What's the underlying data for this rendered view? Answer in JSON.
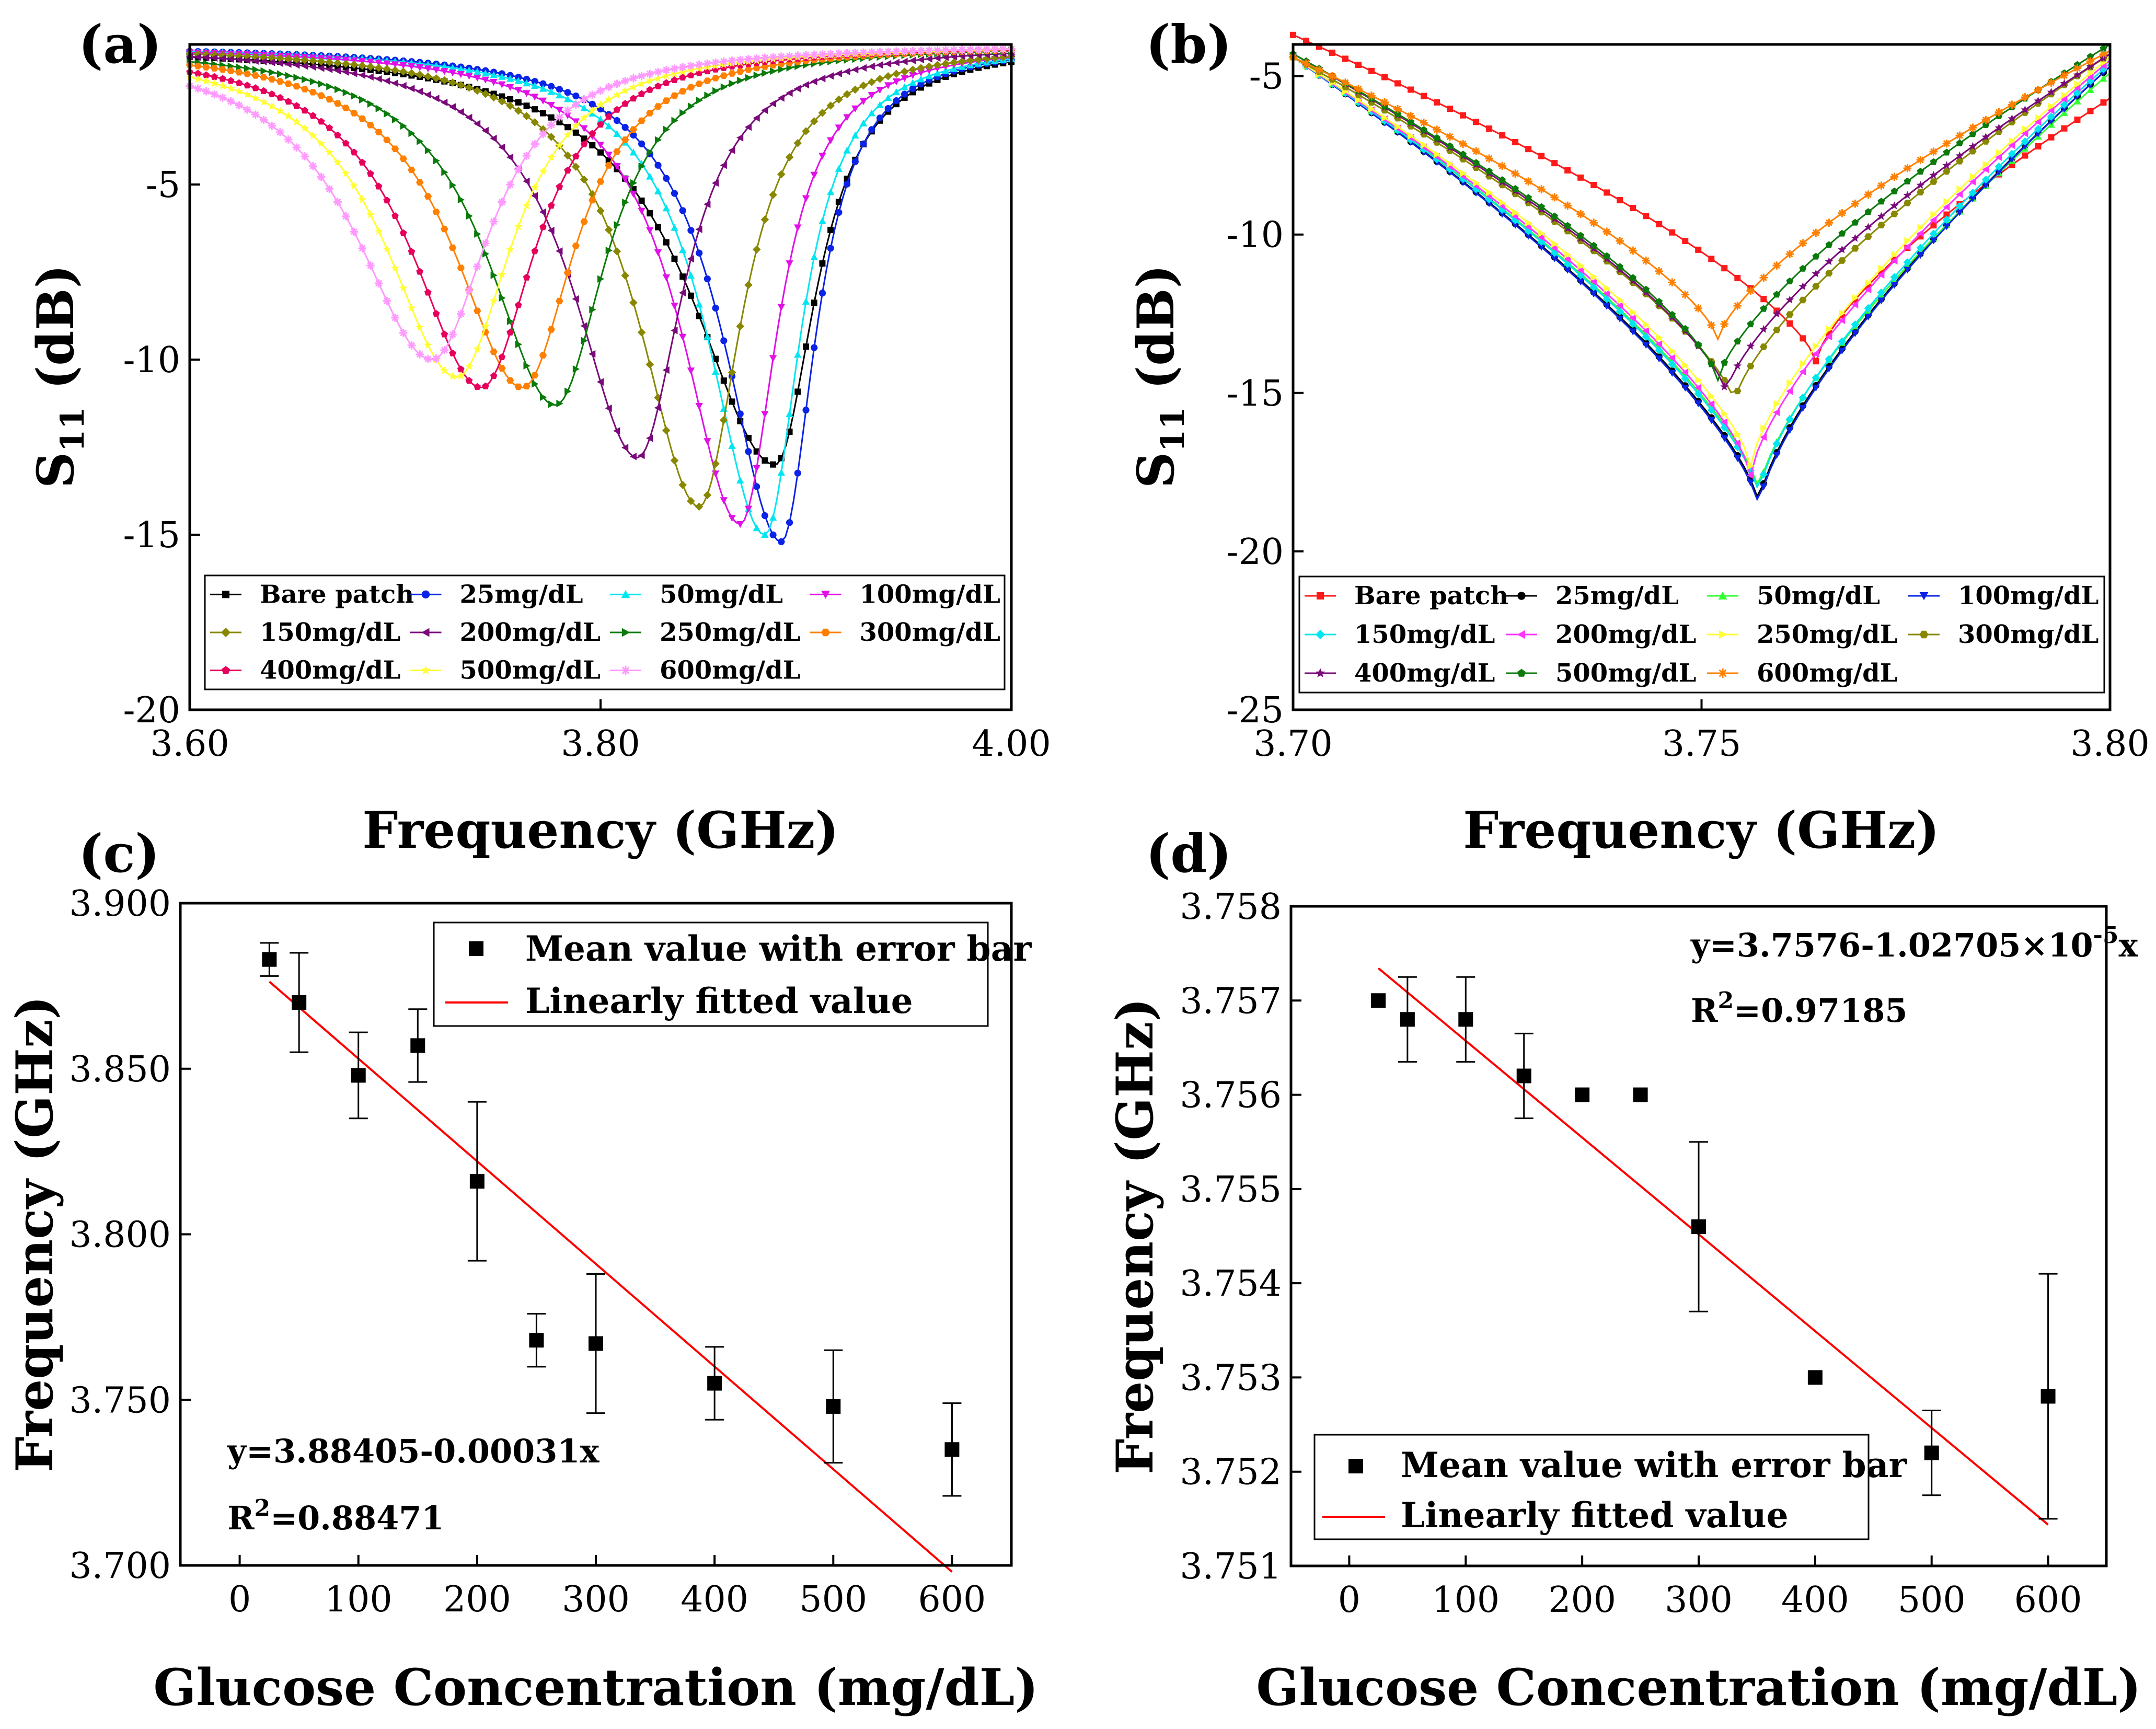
{
  "figure_labels": {
    "a": "(a)",
    "b": "(b)",
    "c": "(c)",
    "d": "(d)"
  },
  "chart_data": [
    {
      "panel": "(a)",
      "type": "line",
      "xlabel": "Frequency (GHz)",
      "ylabel": "S11 (dB)",
      "ylabel_main": "S",
      "ylabel_sub": "11",
      "ylabel_tail": " (dB)",
      "xlim": [
        3.6,
        4.0
      ],
      "ylim": [
        -20,
        -1
      ],
      "xticks": [
        "3.60",
        "3.80",
        "4.00"
      ],
      "xtick_values": [
        3.6,
        3.8,
        4.0
      ],
      "yticks": [
        "-5",
        "-10",
        "-15",
        "-20"
      ],
      "ytick_values": [
        -5,
        -10,
        -15,
        -20
      ],
      "baseline": -1.0,
      "legend_columns": 4,
      "series": [
        {
          "name": "Bare patch",
          "color": "#000000",
          "marker": "square",
          "f0": 3.885,
          "min": -13.0,
          "wl": 0.05,
          "wr": 0.024
        },
        {
          "name": "25mg/dL",
          "color": "#0a23e6",
          "marker": "circle",
          "f0": 3.888,
          "min": -15.2,
          "wl": 0.034,
          "wr": 0.02
        },
        {
          "name": "50mg/dL",
          "color": "#00e6f0",
          "marker": "triangle-up",
          "f0": 3.88,
          "min": -15.0,
          "wl": 0.034,
          "wr": 0.021
        },
        {
          "name": "100mg/dL",
          "color": "#e010e6",
          "marker": "triangle-down",
          "f0": 3.868,
          "min": -14.7,
          "wl": 0.035,
          "wr": 0.022
        },
        {
          "name": "150mg/dL",
          "color": "#888800",
          "marker": "diamond",
          "f0": 3.848,
          "min": -14.2,
          "wl": 0.036,
          "wr": 0.025
        },
        {
          "name": "200mg/dL",
          "color": "#7a0a7a",
          "marker": "triangle-left",
          "f0": 3.818,
          "min": -12.8,
          "wl": 0.038,
          "wr": 0.027
        },
        {
          "name": "250mg/dL",
          "color": "#0a7a0a",
          "marker": "triangle-right",
          "f0": 3.778,
          "min": -11.3,
          "wl": 0.04,
          "wr": 0.03
        },
        {
          "name": "300mg/dL",
          "color": "#ff8000",
          "marker": "hexagon",
          "f0": 3.762,
          "min": -10.8,
          "wl": 0.041,
          "wr": 0.031
        },
        {
          "name": "400mg/dL",
          "color": "#e6005c",
          "marker": "pentagon",
          "f0": 3.742,
          "min": -10.8,
          "wl": 0.042,
          "wr": 0.032
        },
        {
          "name": "500mg/dL",
          "color": "#ffff33",
          "marker": "star",
          "f0": 3.73,
          "min": -10.5,
          "wl": 0.043,
          "wr": 0.033
        },
        {
          "name": "600mg/dL",
          "color": "#ff99ff",
          "marker": "asterisk",
          "f0": 3.718,
          "min": -10.0,
          "wl": 0.046,
          "wr": 0.034
        }
      ]
    },
    {
      "panel": "(b)",
      "type": "line",
      "xlabel": "Frequency (GHz)",
      "ylabel": "S11 (dB)",
      "ylabel_main": "S",
      "ylabel_sub": "11",
      "ylabel_tail": " (dB)",
      "xlim": [
        3.7,
        3.8
      ],
      "ylim": [
        -25,
        -4
      ],
      "xticks": [
        "3.70",
        "3.75",
        "3.80"
      ],
      "xtick_values": [
        3.7,
        3.75,
        3.8
      ],
      "yticks": [
        "-5",
        "-10",
        "-15",
        "-20",
        "-25"
      ],
      "ytick_values": [
        -5,
        -10,
        -15,
        -20,
        -25
      ],
      "legend_columns": 4,
      "series": [
        {
          "name": "Bare patch",
          "color": "#ff1a1a",
          "marker": "square",
          "y_left": -3.7,
          "f0": 3.764,
          "min": -14.0,
          "y_right": -5.7
        },
        {
          "name": "25mg/dL",
          "color": "#000000",
          "marker": "circle",
          "y_left": -4.4,
          "f0": 3.757,
          "min": -18.5,
          "y_right": -4.7
        },
        {
          "name": "50mg/dL",
          "color": "#33ff33",
          "marker": "triangle-up",
          "y_left": -4.4,
          "f0": 3.757,
          "min": -18.1,
          "y_right": -4.9
        },
        {
          "name": "100mg/dL",
          "color": "#0a23e6",
          "marker": "triangle-down",
          "y_left": -4.4,
          "f0": 3.757,
          "min": -18.6,
          "y_right": -4.7
        },
        {
          "name": "150mg/dL",
          "color": "#00e6f0",
          "marker": "diamond",
          "y_left": -4.4,
          "f0": 3.757,
          "min": -18.2,
          "y_right": -4.6
        },
        {
          "name": "200mg/dL",
          "color": "#ff33ff",
          "marker": "triangle-left",
          "y_left": -4.4,
          "f0": 3.756,
          "min": -17.6,
          "y_right": -4.5
        },
        {
          "name": "250mg/dL",
          "color": "#ffff33",
          "marker": "triangle-right",
          "y_left": -4.4,
          "f0": 3.756,
          "min": -17.3,
          "y_right": -4.4
        },
        {
          "name": "300mg/dL",
          "color": "#888800",
          "marker": "hexagon",
          "y_left": -4.4,
          "f0": 3.754,
          "min": -15.3,
          "y_right": -4.3
        },
        {
          "name": "400mg/dL",
          "color": "#7a0a7a",
          "marker": "star",
          "y_left": -4.3,
          "f0": 3.753,
          "min": -15.0,
          "y_right": -4.3
        },
        {
          "name": "500mg/dL",
          "color": "#0a7a0a",
          "marker": "pentagon",
          "y_left": -4.3,
          "f0": 3.752,
          "min": -14.6,
          "y_right": -4.0
        },
        {
          "name": "600mg/dL",
          "color": "#ff8000",
          "marker": "asterisk",
          "y_left": -4.4,
          "f0": 3.752,
          "min": -13.3,
          "y_right": -4.2
        }
      ]
    },
    {
      "panel": "(c)",
      "type": "scatter",
      "xlabel": "Glucose Concentration (mg/dL)",
      "ylabel": "Frequency (GHz)",
      "xlim": [
        -50,
        650
      ],
      "ylim": [
        3.7,
        3.9
      ],
      "xticks": [
        "0",
        "100",
        "200",
        "300",
        "400",
        "500",
        "600"
      ],
      "xtick_values": [
        0,
        100,
        200,
        300,
        400,
        500,
        600
      ],
      "yticks": [
        "3.900",
        "3.850",
        "3.800",
        "3.750",
        "3.700"
      ],
      "ytick_values": [
        3.9,
        3.85,
        3.8,
        3.75,
        3.7
      ],
      "points": [
        {
          "x": 25,
          "y": 3.883,
          "err": 0.005
        },
        {
          "x": 50,
          "y": 3.87,
          "err": 0.015
        },
        {
          "x": 100,
          "y": 3.848,
          "err": 0.013
        },
        {
          "x": 150,
          "y": 3.857,
          "err": 0.011
        },
        {
          "x": 200,
          "y": 3.816,
          "err": 0.024
        },
        {
          "x": 250,
          "y": 3.768,
          "err": 0.008
        },
        {
          "x": 300,
          "y": 3.767,
          "err": 0.021
        },
        {
          "x": 400,
          "y": 3.755,
          "err": 0.011
        },
        {
          "x": 500,
          "y": 3.748,
          "err": 0.017
        },
        {
          "x": 600,
          "y": 3.735,
          "err": 0.014
        }
      ],
      "fit": {
        "intercept": 3.88405,
        "slope": -0.00031,
        "x_range": [
          25,
          600
        ]
      },
      "legend": [
        "Mean value with error bar",
        "Linearly fitted value"
      ],
      "equation": "y=3.88405-0.00031x",
      "r2_prefix": "R",
      "r2_sup": "2",
      "r2_value": "=0.88471"
    },
    {
      "panel": "(d)",
      "type": "scatter",
      "xlabel": "Glucose Concentration (mg/dL)",
      "ylabel": "Frequency (GHz)",
      "xlim": [
        -50,
        650
      ],
      "ylim": [
        3.751,
        3.758
      ],
      "xticks": [
        "0",
        "100",
        "200",
        "300",
        "400",
        "500",
        "600"
      ],
      "xtick_values": [
        0,
        100,
        200,
        300,
        400,
        500,
        600
      ],
      "yticks": [
        "3.758",
        "3.757",
        "3.756",
        "3.755",
        "3.754",
        "3.753",
        "3.752",
        "3.751"
      ],
      "ytick_values": [
        3.758,
        3.757,
        3.756,
        3.755,
        3.754,
        3.753,
        3.752,
        3.751
      ],
      "points": [
        {
          "x": 25,
          "y": 3.757,
          "err": 0
        },
        {
          "x": 50,
          "y": 3.7568,
          "err": 0.00045
        },
        {
          "x": 100,
          "y": 3.7568,
          "err": 0.00045
        },
        {
          "x": 150,
          "y": 3.7562,
          "err": 0.00045
        },
        {
          "x": 200,
          "y": 3.756,
          "err": 0
        },
        {
          "x": 250,
          "y": 3.756,
          "err": 0
        },
        {
          "x": 300,
          "y": 3.7546,
          "err": 0.0009
        },
        {
          "x": 400,
          "y": 3.753,
          "err": 0
        },
        {
          "x": 500,
          "y": 3.7522,
          "err": 0.00045
        },
        {
          "x": 600,
          "y": 3.7528,
          "err": 0.0013
        }
      ],
      "fit": {
        "intercept": 3.7576,
        "slope": -1.02705e-05,
        "x_range": [
          25,
          600
        ]
      },
      "legend": [
        "Mean value with error bar",
        "Linearly fitted value"
      ],
      "equation_main": "y=3.7576-1.02705×10",
      "equation_sup": "-5",
      "equation_tail": "x",
      "r2_prefix": "R",
      "r2_sup": "2",
      "r2_value": "=0.97185"
    }
  ]
}
